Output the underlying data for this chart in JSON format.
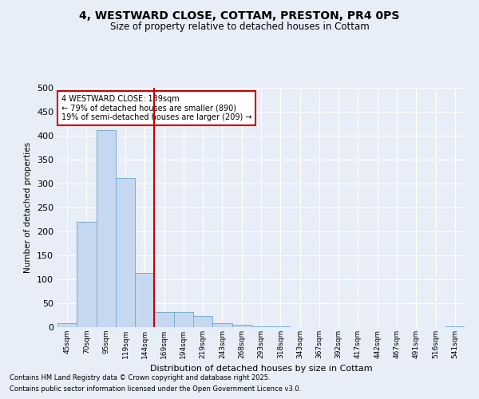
{
  "title": "4, WESTWARD CLOSE, COTTAM, PRESTON, PR4 0PS",
  "subtitle": "Size of property relative to detached houses in Cottam",
  "xlabel": "Distribution of detached houses by size in Cottam",
  "ylabel": "Number of detached properties",
  "bar_color": "#c5d8f0",
  "bar_edge_color": "#7aadd4",
  "background_color": "#e8eef8",
  "grid_color": "#ffffff",
  "categories": [
    "45sqm",
    "70sqm",
    "95sqm",
    "119sqm",
    "144sqm",
    "169sqm",
    "194sqm",
    "219sqm",
    "243sqm",
    "268sqm",
    "293sqm",
    "318sqm",
    "343sqm",
    "367sqm",
    "392sqm",
    "417sqm",
    "442sqm",
    "467sqm",
    "491sqm",
    "516sqm",
    "541sqm"
  ],
  "values": [
    8,
    220,
    412,
    312,
    113,
    31,
    31,
    24,
    8,
    5,
    2,
    1,
    0,
    0,
    0,
    0,
    0,
    0,
    0,
    0,
    2
  ],
  "ylim": [
    0,
    500
  ],
  "yticks": [
    0,
    50,
    100,
    150,
    200,
    250,
    300,
    350,
    400,
    450,
    500
  ],
  "vline_index": 4,
  "vline_color": "#cc0000",
  "annotation_text": "4 WESTWARD CLOSE: 139sqm\n← 79% of detached houses are smaller (890)\n19% of semi-detached houses are larger (209) →",
  "annotation_box_color": "#ffffff",
  "annotation_box_edge": "#cc0000",
  "footnote1": "Contains HM Land Registry data © Crown copyright and database right 2025.",
  "footnote2": "Contains public sector information licensed under the Open Government Licence v3.0."
}
